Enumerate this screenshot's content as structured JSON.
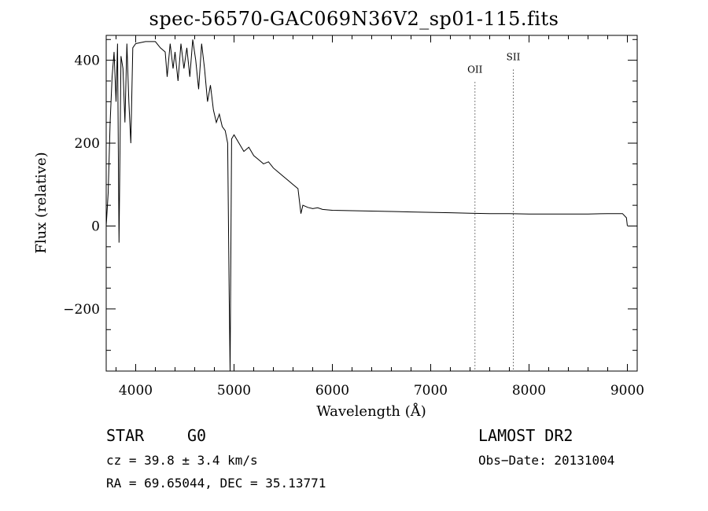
{
  "chart_data": {
    "type": "line",
    "title": "spec-56570-GAC069N36V2_sp01-115.fits",
    "xlabel": "Wavelength (Å)",
    "ylabel": "Flux (relative)",
    "xlim": [
      3700,
      9100
    ],
    "ylim": [
      -350,
      460
    ],
    "xticks": [
      4000,
      5000,
      6000,
      7000,
      8000,
      9000
    ],
    "yticks": [
      -200,
      0,
      200,
      400
    ],
    "xtick_labels": [
      "4000",
      "5000",
      "6000",
      "7000",
      "8000",
      "9000"
    ],
    "ytick_labels": [
      "−200",
      "0",
      "200",
      "400"
    ],
    "grid": false,
    "series": [
      {
        "x": [
          3700,
          3720,
          3740,
          3760,
          3780,
          3800,
          3815,
          3830,
          3850,
          3870,
          3890,
          3910,
          3930,
          3950,
          3970,
          4000,
          4100,
          4200,
          4250,
          4300,
          4320,
          4350,
          4380,
          4400,
          4430,
          4460,
          4490,
          4520,
          4550,
          4580,
          4610,
          4640,
          4670,
          4700,
          4730,
          4760,
          4790,
          4820,
          4850,
          4880,
          4910,
          4935,
          4950,
          4960,
          4975,
          5000,
          5050,
          5100,
          5150,
          5200,
          5250,
          5300,
          5350,
          5400,
          5450,
          5500,
          5550,
          5600,
          5650,
          5680,
          5700,
          5750,
          5800,
          5850,
          5900,
          6000,
          6200,
          6400,
          6600,
          6800,
          7000,
          7200,
          7400,
          7600,
          7800,
          8000,
          8200,
          8400,
          8600,
          8800,
          8950,
          8990,
          9000
        ],
        "y": [
          0,
          80,
          250,
          360,
          420,
          300,
          440,
          -40,
          410,
          380,
          250,
          440,
          300,
          200,
          430,
          440,
          445,
          445,
          430,
          420,
          360,
          440,
          380,
          420,
          350,
          440,
          380,
          430,
          360,
          450,
          400,
          330,
          440,
          380,
          300,
          340,
          280,
          250,
          270,
          240,
          230,
          200,
          -160,
          -350,
          210,
          220,
          200,
          180,
          190,
          170,
          160,
          150,
          155,
          140,
          130,
          120,
          110,
          100,
          90,
          30,
          50,
          45,
          42,
          44,
          40,
          38,
          37,
          36,
          35,
          34,
          33,
          32,
          31,
          30,
          30,
          29,
          29,
          29,
          29,
          30,
          30,
          20,
          0
        ]
      }
    ],
    "annotations": [
      {
        "label": "OII",
        "x": 7450,
        "label_y": 370
      },
      {
        "label": "SII",
        "x": 7840,
        "label_y": 400
      }
    ]
  },
  "info": {
    "object_type": "STAR",
    "subclass": "G0",
    "survey": "LAMOST DR2",
    "cz": "cz = 39.8 ± 3.4 km/s",
    "obs_date": "Obs−Date: 20131004",
    "radec": "RA =  69.65044, DEC =  35.13771"
  }
}
